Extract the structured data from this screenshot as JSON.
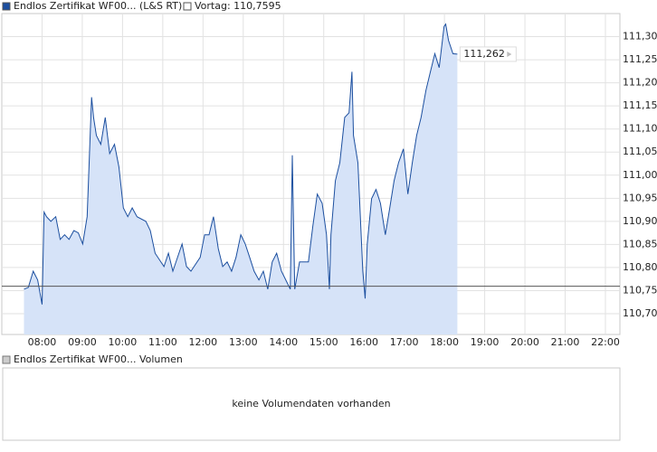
{
  "chart_data": {
    "type": "line",
    "series": [
      {
        "name": "Endlos Zertifikat WF00... (L&S RT)",
        "color": "#1c4f9f",
        "fill": "#d6e3f8",
        "x": [
          7.55,
          7.66,
          7.78,
          7.89,
          8.0,
          8.05,
          8.11,
          8.22,
          8.34,
          8.45,
          8.56,
          8.67,
          8.79,
          8.9,
          9.01,
          9.12,
          9.23,
          9.28,
          9.35,
          9.46,
          9.57,
          9.68,
          9.8,
          9.91,
          10.02,
          10.13,
          10.24,
          10.36,
          10.58,
          10.69,
          10.81,
          11.03,
          11.14,
          11.25,
          11.48,
          11.59,
          11.7,
          11.93,
          12.04,
          12.15,
          12.26,
          12.38,
          12.49,
          12.6,
          12.71,
          12.82,
          12.94,
          13.05,
          13.16,
          13.27,
          13.39,
          13.5,
          13.61,
          13.72,
          13.83,
          13.95,
          14.17,
          14.22,
          14.28,
          14.4,
          14.62,
          14.73,
          14.84,
          14.96,
          15.07,
          15.14,
          15.18,
          15.29,
          15.4,
          15.52,
          15.63,
          15.7,
          15.74,
          15.85,
          15.97,
          16.03,
          16.08,
          16.19,
          16.3,
          16.41,
          16.53,
          16.64,
          16.75,
          16.86,
          16.98,
          17.09,
          17.2,
          17.31,
          17.42,
          17.54,
          17.65,
          17.76,
          17.87,
          17.99,
          18.03,
          18.1,
          18.21,
          18.32
        ],
        "values": [
          110.753,
          110.757,
          110.792,
          110.773,
          110.72,
          110.92,
          110.91,
          110.9,
          110.91,
          110.861,
          110.871,
          110.861,
          110.88,
          110.875,
          110.851,
          110.91,
          111.169,
          111.125,
          111.086,
          111.067,
          111.125,
          111.047,
          111.067,
          111.018,
          110.929,
          110.91,
          110.929,
          110.91,
          110.9,
          110.88,
          110.831,
          110.802,
          110.831,
          110.792,
          110.851,
          110.802,
          110.792,
          110.822,
          110.871,
          110.871,
          110.91,
          110.841,
          110.802,
          110.812,
          110.792,
          110.822,
          110.871,
          110.851,
          110.822,
          110.792,
          110.773,
          110.792,
          110.753,
          110.812,
          110.831,
          110.792,
          110.753,
          111.043,
          110.753,
          110.812,
          110.812,
          110.89,
          110.959,
          110.939,
          110.871,
          110.753,
          110.871,
          110.988,
          111.027,
          111.125,
          111.135,
          111.224,
          111.086,
          111.027,
          110.792,
          110.733,
          110.851,
          110.949,
          110.969,
          110.939,
          110.871,
          110.929,
          110.988,
          111.027,
          111.057,
          110.959,
          111.027,
          111.086,
          111.125,
          111.184,
          111.224,
          111.263,
          111.233,
          111.322,
          111.327,
          111.292,
          111.263,
          111.262
        ]
      }
    ],
    "reference": {
      "label": "Vortag: 110,7595",
      "value": 110.7595
    },
    "last_value_label": "111,262",
    "xlim": [
      7.0,
      22.36
    ],
    "ylim": [
      110.655,
      111.35
    ],
    "xticks": [
      {
        "value": 8,
        "label": "08:00"
      },
      {
        "value": 9,
        "label": "09:00"
      },
      {
        "value": 10,
        "label": "10:00"
      },
      {
        "value": 11,
        "label": "11:00"
      },
      {
        "value": 12,
        "label": "12:00"
      },
      {
        "value": 13,
        "label": "13:00"
      },
      {
        "value": 14,
        "label": "14:00"
      },
      {
        "value": 15,
        "label": "15:00"
      },
      {
        "value": 16,
        "label": "16:00"
      },
      {
        "value": 17,
        "label": "17:00"
      },
      {
        "value": 18,
        "label": "18:00"
      },
      {
        "value": 19,
        "label": "19:00"
      },
      {
        "value": 20,
        "label": "20:00"
      },
      {
        "value": 21,
        "label": "21:00"
      },
      {
        "value": 22,
        "label": "22:00"
      }
    ],
    "yticks": [
      {
        "value": 110.7,
        "label": "110,70"
      },
      {
        "value": 110.75,
        "label": "110,75"
      },
      {
        "value": 110.8,
        "label": "110,80"
      },
      {
        "value": 110.85,
        "label": "110,85"
      },
      {
        "value": 110.9,
        "label": "110,90"
      },
      {
        "value": 110.95,
        "label": "110,95"
      },
      {
        "value": 111.0,
        "label": "111,00"
      },
      {
        "value": 111.05,
        "label": "111,05"
      },
      {
        "value": 111.1,
        "label": "111,10"
      },
      {
        "value": 111.15,
        "label": "111,15"
      },
      {
        "value": 111.2,
        "label": "111,20"
      },
      {
        "value": 111.25,
        "label": "111,25"
      },
      {
        "value": 111.3,
        "label": "111,30"
      }
    ],
    "grid": true,
    "volume": {
      "title": "Endlos Zertifikat WF00... Volumen",
      "message": "keine Volumendaten vorhanden"
    }
  }
}
